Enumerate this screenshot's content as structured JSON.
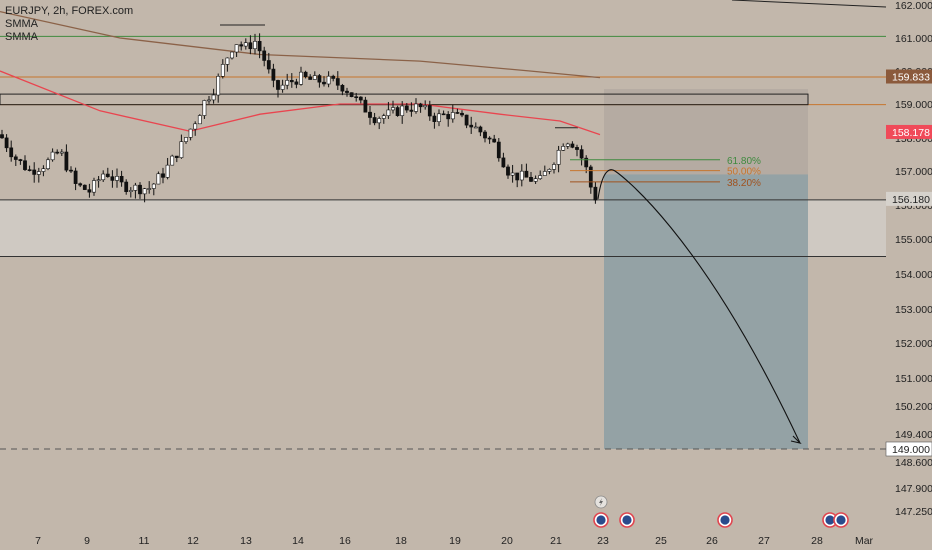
{
  "legend": {
    "symbol": "EURJPY, 2h, FOREX.com",
    "indicator1": "SMMA",
    "indicator2": "SMMA"
  },
  "colors": {
    "background": "#c2b7ab",
    "up": "#ffffff",
    "down": "#111111",
    "smma_fast": "#e9454f",
    "smma_slow": "#8b6248",
    "green_line": "#3f8a3f",
    "orange_line": "#c7762e",
    "target_zone": "#8fa0a4",
    "risk_zone": "#b4aaa1",
    "tag_orange": "#8b5a3c",
    "tag_red": "#f04a59",
    "tag_gray": "#d6d2cc",
    "tag_white": "#ffffff"
  },
  "chart_data": {
    "type": "candlestick",
    "title": "EURJPY, 2h, FOREX.com",
    "ylim": [
      146.9,
      162.1
    ],
    "y_ticks": [
      "162.000",
      "161.000",
      "160.000",
      "159.000",
      "158.000",
      "157.000",
      "156.000",
      "155.000",
      "154.000",
      "153.000",
      "152.000",
      "151.000",
      "150.200",
      "149.400",
      "148.600",
      "147.900",
      "147.250"
    ],
    "x_ticks": [
      "7",
      "9",
      "11",
      "12",
      "13",
      "14",
      "16",
      "18",
      "19",
      "20",
      "21",
      "23",
      "25",
      "26",
      "27",
      "28",
      "Mar"
    ],
    "price_tags": [
      {
        "label": "159.833",
        "value": 159.833,
        "style": "orange"
      },
      {
        "label": "158.178",
        "value": 158.178,
        "style": "red"
      },
      {
        "label": "156.180",
        "value": 156.18,
        "style": "gray"
      },
      {
        "label": "149.000",
        "value": 149.0,
        "style": "white"
      }
    ],
    "horizontal_lines": [
      {
        "value": 161.05,
        "color": "green"
      },
      {
        "value": 159.82,
        "color": "orange"
      },
      {
        "value": 158.98,
        "color": "orange"
      },
      {
        "value": 156.15,
        "color": "dark"
      },
      {
        "value": 154.5,
        "color": "dark"
      }
    ],
    "fib_levels": [
      {
        "label": "61.80%",
        "value": 157.34
      },
      {
        "label": "50.00%",
        "value": 157.01
      },
      {
        "label": "38.20%",
        "value": 156.68
      }
    ],
    "close_series": [
      {
        "x": 0,
        "y": 158.1
      },
      {
        "x": 15,
        "y": 157.4
      },
      {
        "x": 30,
        "y": 157.0
      },
      {
        "x": 45,
        "y": 157.2
      },
      {
        "x": 60,
        "y": 157.6
      },
      {
        "x": 75,
        "y": 156.6
      },
      {
        "x": 90,
        "y": 156.4
      },
      {
        "x": 105,
        "y": 157.0
      },
      {
        "x": 120,
        "y": 156.6
      },
      {
        "x": 135,
        "y": 156.5
      },
      {
        "x": 150,
        "y": 156.5
      },
      {
        "x": 165,
        "y": 157.0
      },
      {
        "x": 180,
        "y": 157.7
      },
      {
        "x": 195,
        "y": 158.5
      },
      {
        "x": 205,
        "y": 159.1
      },
      {
        "x": 215,
        "y": 159.5
      },
      {
        "x": 225,
        "y": 160.3
      },
      {
        "x": 235,
        "y": 160.9
      },
      {
        "x": 245,
        "y": 160.7
      },
      {
        "x": 255,
        "y": 160.9
      },
      {
        "x": 265,
        "y": 160.3
      },
      {
        "x": 275,
        "y": 159.4
      },
      {
        "x": 285,
        "y": 159.6
      },
      {
        "x": 300,
        "y": 159.8
      },
      {
        "x": 315,
        "y": 159.7
      },
      {
        "x": 330,
        "y": 159.7
      },
      {
        "x": 345,
        "y": 159.5
      },
      {
        "x": 360,
        "y": 159.0
      },
      {
        "x": 375,
        "y": 158.6
      },
      {
        "x": 390,
        "y": 158.7
      },
      {
        "x": 405,
        "y": 158.9
      },
      {
        "x": 420,
        "y": 158.9
      },
      {
        "x": 435,
        "y": 158.6
      },
      {
        "x": 450,
        "y": 158.7
      },
      {
        "x": 465,
        "y": 158.5
      },
      {
        "x": 480,
        "y": 158.2
      },
      {
        "x": 495,
        "y": 157.8
      },
      {
        "x": 510,
        "y": 156.9
      },
      {
        "x": 525,
        "y": 156.8
      },
      {
        "x": 540,
        "y": 156.7
      },
      {
        "x": 555,
        "y": 157.4
      },
      {
        "x": 565,
        "y": 158.0
      },
      {
        "x": 575,
        "y": 157.8
      },
      {
        "x": 585,
        "y": 157.2
      },
      {
        "x": 592,
        "y": 156.4
      },
      {
        "x": 598,
        "y": 156.1
      }
    ],
    "smma_fast": [
      {
        "x": 0,
        "y": 160.0
      },
      {
        "x": 100,
        "y": 158.8
      },
      {
        "x": 190,
        "y": 158.2
      },
      {
        "x": 260,
        "y": 158.7
      },
      {
        "x": 340,
        "y": 159.0
      },
      {
        "x": 420,
        "y": 159.0
      },
      {
        "x": 500,
        "y": 158.7
      },
      {
        "x": 560,
        "y": 158.5
      },
      {
        "x": 600,
        "y": 158.1
      }
    ],
    "smma_slow": [
      {
        "x": 0,
        "y": 161.8
      },
      {
        "x": 120,
        "y": 161.0
      },
      {
        "x": 260,
        "y": 160.5
      },
      {
        "x": 420,
        "y": 160.3
      },
      {
        "x": 530,
        "y": 160.0
      },
      {
        "x": 600,
        "y": 159.8
      }
    ],
    "projection": {
      "from": 156.18,
      "peak": 157.0,
      "to": 149.0
    },
    "event_icons": 6
  }
}
